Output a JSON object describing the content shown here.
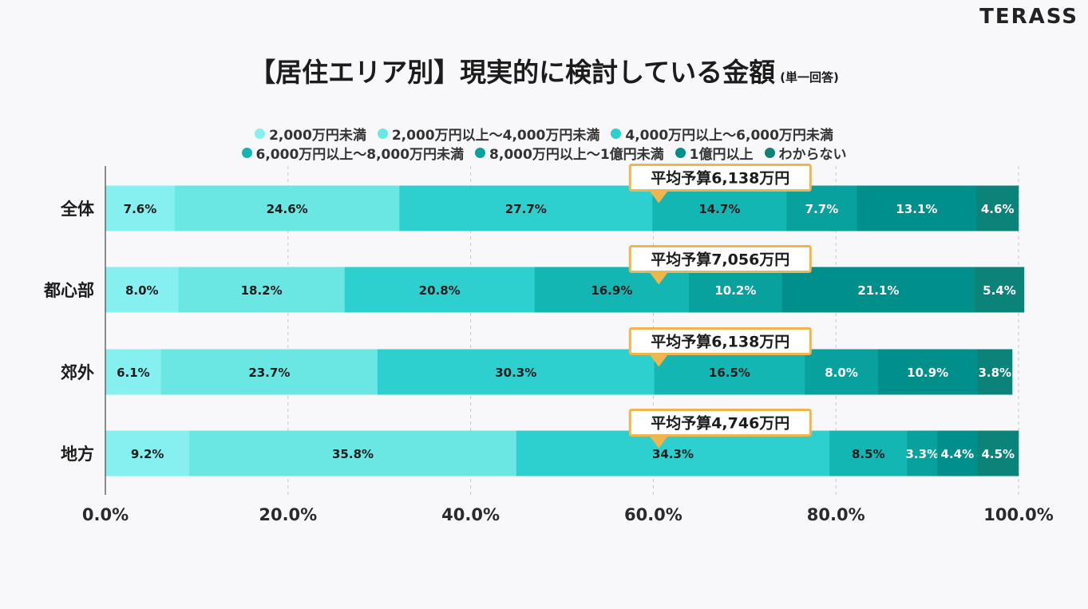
{
  "brand": "TERASS",
  "header": {
    "title": "【居住エリア別】現実的に検討している金額",
    "title_note": "(単一回答)"
  },
  "colors": [
    "#86f0f0",
    "#6ae6e3",
    "#2dcfcf",
    "#14b6b3",
    "#08a19e",
    "#008f8b",
    "#0b8378"
  ],
  "callout_color": "#f0b54d",
  "chart_data": {
    "type": "bar",
    "orientation": "horizontal",
    "stacked": true,
    "categories": [
      "全体",
      "都心部",
      "郊外",
      "地方"
    ],
    "series": [
      {
        "name": "2,000万円未満",
        "values": [
          7.6,
          8.0,
          6.1,
          9.2
        ]
      },
      {
        "name": "2,000万円以上～4,000万円未満",
        "values": [
          24.6,
          18.2,
          23.7,
          35.8
        ]
      },
      {
        "name": "4,000万円以上～6,000万円未満",
        "values": [
          27.7,
          20.8,
          30.3,
          34.3
        ]
      },
      {
        "name": "6,000万円以上～8,000万円未満",
        "values": [
          14.7,
          16.9,
          16.5,
          8.5
        ]
      },
      {
        "name": "8,000万円以上～1億円未満",
        "values": [
          7.7,
          10.2,
          8.0,
          3.3
        ]
      },
      {
        "name": "1億円以上",
        "values": [
          13.1,
          21.1,
          10.9,
          4.4
        ]
      },
      {
        "name": "わからない",
        "values": [
          4.6,
          5.4,
          3.8,
          4.5
        ]
      }
    ],
    "data_labels": [
      [
        "7.6%",
        "24.6%",
        "27.7%",
        "14.7%",
        "7.7%",
        "13.1%",
        "4.6%"
      ],
      [
        "8.0%",
        "18.2%",
        "20.8%",
        "16.9%",
        "10.2%",
        "21.1%",
        "5.4%"
      ],
      [
        "6.1%",
        "23.7%",
        "30.3%",
        "16.5%",
        "8.0%",
        "10.9%",
        "3.8%"
      ],
      [
        "9.2%",
        "35.8%",
        "34.3%",
        "8.5%",
        "3.3%",
        "4.4%",
        "4.5%"
      ]
    ],
    "callouts": [
      "平均予算6,138万円",
      "平均予算7,056万円",
      "平均予算6,138万円",
      "平均予算4,746万円"
    ],
    "callout_at": [
      60.6,
      60.6,
      60.6,
      60.6
    ],
    "xlim": [
      0,
      100
    ],
    "xticks": [
      0,
      20,
      40,
      60,
      80,
      100
    ],
    "xtick_labels": [
      "0.0%",
      "20.0%",
      "40.0%",
      "60.0%",
      "80.0%",
      "100.0%"
    ],
    "grid": true,
    "legend_position": "top"
  }
}
